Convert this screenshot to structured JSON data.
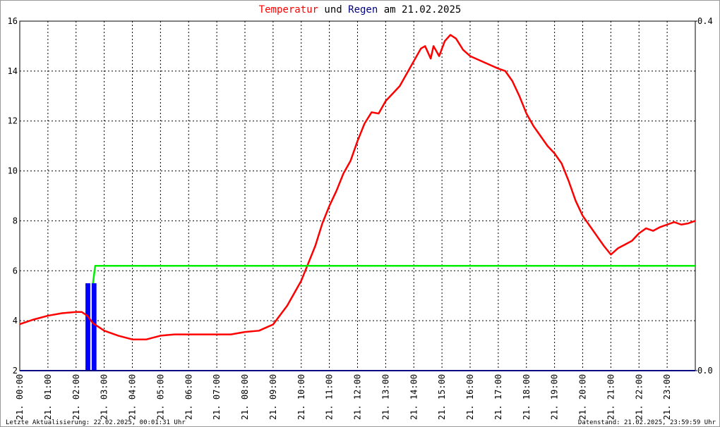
{
  "chart_data": {
    "type": "line",
    "title_and": "und",
    "title_date": "am 21.02.2025",
    "footer_left": "Letzte Aktualisierung: 22.02.2025, 00:01:31 Uhr",
    "footer_right": "Datenstand: 21.02.2025, 23:59:59 Uhr",
    "xlim": [
      0,
      24
    ],
    "xticks": [
      {
        "value": 0,
        "label": "21. 00:00"
      },
      {
        "value": 1,
        "label": "21. 01:00"
      },
      {
        "value": 2,
        "label": "21. 02:00"
      },
      {
        "value": 3,
        "label": "21. 03:00"
      },
      {
        "value": 4,
        "label": "21. 04:00"
      },
      {
        "value": 5,
        "label": "21. 05:00"
      },
      {
        "value": 6,
        "label": "21. 06:00"
      },
      {
        "value": 7,
        "label": "21. 07:00"
      },
      {
        "value": 8,
        "label": "21. 08:00"
      },
      {
        "value": 9,
        "label": "21. 09:00"
      },
      {
        "value": 10,
        "label": "21. 10:00"
      },
      {
        "value": 11,
        "label": "21. 11:00"
      },
      {
        "value": 12,
        "label": "21. 12:00"
      },
      {
        "value": 13,
        "label": "21. 13:00"
      },
      {
        "value": 14,
        "label": "21. 14:00"
      },
      {
        "value": 15,
        "label": "21. 15:00"
      },
      {
        "value": 16,
        "label": "21. 16:00"
      },
      {
        "value": 17,
        "label": "21. 17:00"
      },
      {
        "value": 18,
        "label": "21. 18:00"
      },
      {
        "value": 19,
        "label": "21. 19:00"
      },
      {
        "value": 20,
        "label": "21. 20:00"
      },
      {
        "value": 21,
        "label": "21. 21:00"
      },
      {
        "value": 22,
        "label": "21. 22:00"
      },
      {
        "value": 23,
        "label": "21. 23:00"
      }
    ],
    "ylim": [
      2,
      16
    ],
    "yticks": [
      2,
      4,
      6,
      8,
      10,
      12,
      14,
      16
    ],
    "y2lim": [
      0,
      0.4
    ],
    "y2ticks": [
      {
        "value": 0,
        "label": "0.0"
      },
      0.4
    ],
    "grid": true,
    "series": [
      {
        "name": "Temperatur",
        "color": "#ff0000",
        "x": [
          0,
          0.5,
          1,
          1.5,
          2,
          2.2,
          2.4,
          2.6,
          3,
          3.5,
          4,
          4.5,
          5,
          5.5,
          6,
          6.5,
          7,
          7.5,
          8,
          8.5,
          9,
          9.5,
          10,
          10.25,
          10.5,
          10.75,
          11,
          11.25,
          11.5,
          11.75,
          12,
          12.25,
          12.5,
          12.75,
          13,
          13.25,
          13.5,
          13.75,
          14,
          14.25,
          14.4,
          14.6,
          14.7,
          14.9,
          15.1,
          15.3,
          15.5,
          15.75,
          16,
          16.5,
          17,
          17.25,
          17.5,
          17.75,
          18,
          18.25,
          18.5,
          18.75,
          19,
          19.25,
          19.5,
          19.75,
          20,
          20.25,
          20.5,
          20.75,
          21,
          21.25,
          21.5,
          21.75,
          22,
          22.25,
          22.5,
          22.75,
          23,
          23.25,
          23.5,
          23.75,
          24
        ],
        "values": [
          3.86,
          4.05,
          4.2,
          4.3,
          4.35,
          4.35,
          4.2,
          3.9,
          3.6,
          3.4,
          3.25,
          3.25,
          3.4,
          3.45,
          3.45,
          3.45,
          3.45,
          3.45,
          3.55,
          3.6,
          3.85,
          4.6,
          5.6,
          6.3,
          7.0,
          7.9,
          8.6,
          9.2,
          9.9,
          10.4,
          11.2,
          11.9,
          12.35,
          12.3,
          12.8,
          13.1,
          13.4,
          13.9,
          14.4,
          14.9,
          15.0,
          14.5,
          15.0,
          14.6,
          15.2,
          15.45,
          15.3,
          14.85,
          14.6,
          14.35,
          14.1,
          14.0,
          13.6,
          13.0,
          12.3,
          11.8,
          11.4,
          11.0,
          10.7,
          10.3,
          9.6,
          8.8,
          8.2,
          7.8,
          7.4,
          7.0,
          6.65,
          6.9,
          7.05,
          7.2,
          7.5,
          7.7,
          7.6,
          7.75,
          7.85,
          7.95,
          7.85,
          7.9,
          8.0
        ]
      },
      {
        "name": "Regen",
        "color": "#0000ff",
        "type": "bar",
        "axis": "y2",
        "x": [
          2.42,
          2.64
        ],
        "values": [
          0.1,
          0.1
        ]
      },
      {
        "color": "#00ee00",
        "axis": "y2",
        "x": [
          2.6,
          2.68,
          24
        ],
        "values": [
          0.1,
          0.12,
          0.12
        ]
      }
    ]
  }
}
